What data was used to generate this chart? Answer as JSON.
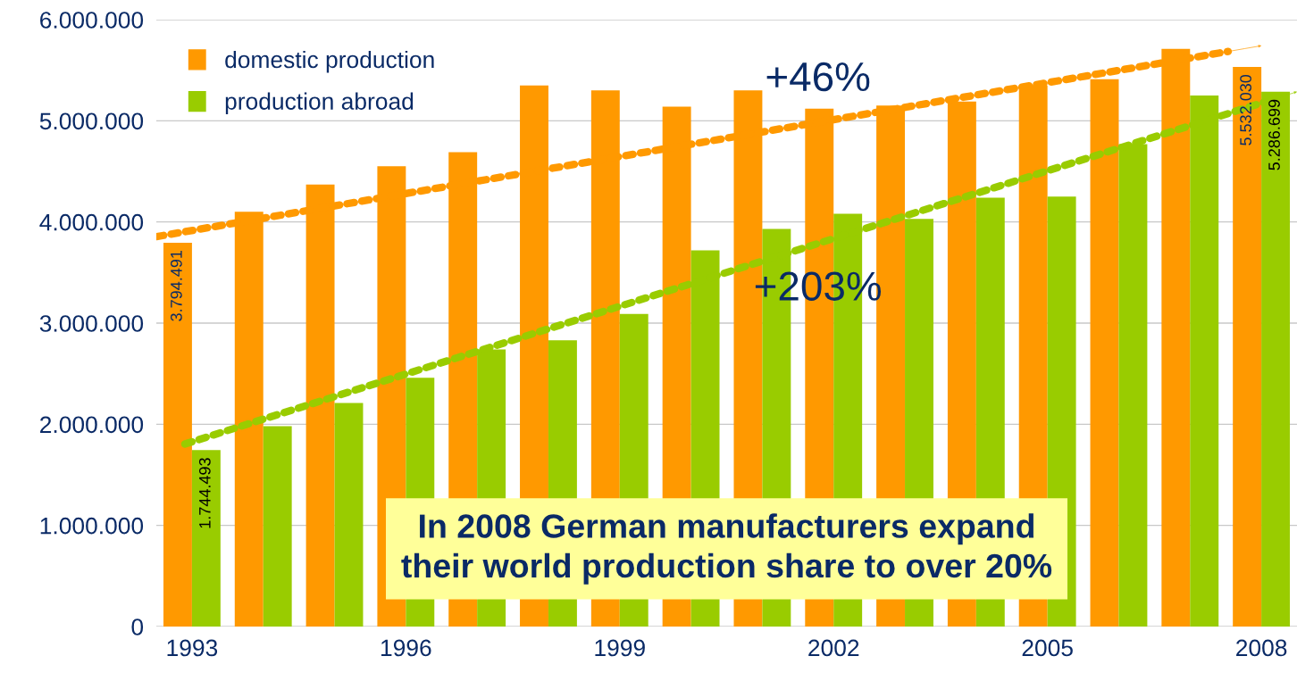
{
  "chart_data": {
    "type": "bar",
    "categories": [
      "1993",
      null,
      null,
      "1996",
      null,
      null,
      "1999",
      null,
      null,
      "2002",
      null,
      null,
      "2005",
      null,
      null,
      "2008"
    ],
    "series": [
      {
        "name": "domestic production",
        "color": "#ff9900",
        "values": [
          3794491,
          4100000,
          4370000,
          4550000,
          4690000,
          5350000,
          5300000,
          5140000,
          5300000,
          5120000,
          5150000,
          5190000,
          5350000,
          5410000,
          5710000,
          5532030
        ],
        "value_labels": [
          "3.794.491",
          null,
          null,
          null,
          null,
          null,
          null,
          null,
          null,
          null,
          null,
          null,
          null,
          null,
          null,
          "5.532.030"
        ]
      },
      {
        "name": "production abroad",
        "color": "#99cc00",
        "values": [
          1744493,
          1980000,
          2210000,
          2460000,
          2740000,
          2830000,
          3090000,
          3720000,
          3930000,
          4080000,
          4030000,
          4240000,
          4250000,
          4770000,
          5250000,
          5286699
        ],
        "value_labels": [
          "1.744.493",
          null,
          null,
          null,
          null,
          null,
          null,
          null,
          null,
          null,
          null,
          null,
          null,
          null,
          null,
          "5.286.699"
        ]
      }
    ],
    "ylim": [
      0,
      6000000
    ],
    "yticks": [
      {
        "value": 0,
        "label": "0"
      },
      {
        "value": 1000000,
        "label": "1.000.000"
      },
      {
        "value": 2000000,
        "label": "2.000.000"
      },
      {
        "value": 3000000,
        "label": "3.000.000"
      },
      {
        "value": 4000000,
        "label": "4.000.000"
      },
      {
        "value": 5000000,
        "label": "5.000.000"
      },
      {
        "value": 6000000,
        "label": "6.000.000"
      }
    ],
    "grid": "y",
    "legend": "top left",
    "annotations": [
      "+46%",
      "+203%",
      "In 2008 German manufacturers expand\ntheir world production share to over 20%"
    ]
  }
}
